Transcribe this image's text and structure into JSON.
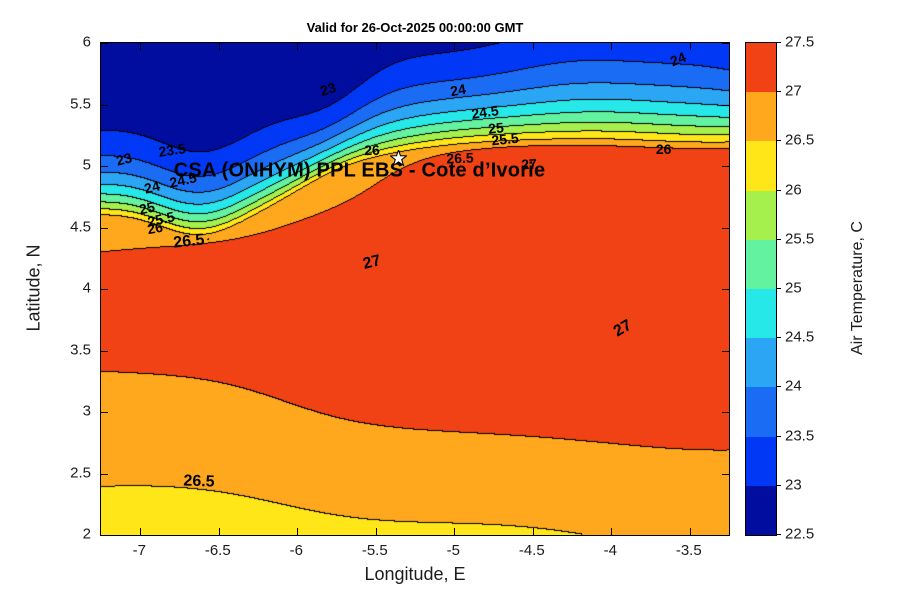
{
  "chart_data": {
    "type": "heatmap",
    "subtype": "filled_contour_map",
    "title": "Valid for 26-Oct-2025 00:00:00 GMT",
    "xlabel": "Longitude, E",
    "ylabel": "Latitude, N",
    "x_range": [
      -7.25,
      -3.25
    ],
    "x_ticks": [
      -7,
      -6.5,
      -6,
      -5.5,
      -5,
      -4.5,
      -4,
      -3.5
    ],
    "y_range": [
      2,
      6
    ],
    "y_ticks": [
      2,
      2.5,
      3,
      3.5,
      4,
      4.5,
      5,
      5.5,
      6
    ],
    "grid": false,
    "value_name": "Air Temperature, C",
    "value_range": [
      22.5,
      27.5
    ],
    "contour_interval": 0.5,
    "contour_levels": [
      23,
      23.5,
      24,
      24.5,
      25,
      25.5,
      26,
      26.5,
      27
    ],
    "contour_labels": [
      {
        "value": "23",
        "lon": -7.1,
        "lat": 5.05,
        "rot": -14
      },
      {
        "value": "23.5",
        "lon": -6.79,
        "lat": 5.12,
        "rot": -8
      },
      {
        "value": "24",
        "lon": -6.92,
        "lat": 4.82,
        "rot": -14
      },
      {
        "value": "24.5",
        "lon": -6.72,
        "lat": 4.88,
        "rot": -12
      },
      {
        "value": "25",
        "lon": -6.95,
        "lat": 4.65,
        "rot": -12
      },
      {
        "value": "25.5",
        "lon": -6.86,
        "lat": 4.56,
        "rot": -12
      },
      {
        "value": "26",
        "lon": -6.9,
        "lat": 4.49,
        "rot": -10
      },
      {
        "value": "26.5",
        "lon": -6.68,
        "lat": 4.37,
        "rot": -6,
        "size": 16
      },
      {
        "value": "23",
        "lon": -5.8,
        "lat": 5.62,
        "rot": -16
      },
      {
        "value": "24",
        "lon": -4.97,
        "lat": 5.61,
        "rot": -10
      },
      {
        "value": "24.5",
        "lon": -4.8,
        "lat": 5.43,
        "rot": -8
      },
      {
        "value": "25",
        "lon": -4.73,
        "lat": 5.3,
        "rot": -6
      },
      {
        "value": "25.5",
        "lon": -4.67,
        "lat": 5.21,
        "rot": -6
      },
      {
        "value": "26",
        "lon": -5.52,
        "lat": 5.12,
        "rot": -2
      },
      {
        "value": "26.5",
        "lon": -4.96,
        "lat": 5.06,
        "rot": -2
      },
      {
        "value": "27",
        "lon": -4.52,
        "lat": 5.01,
        "rot": -4
      },
      {
        "value": "24",
        "lon": -3.57,
        "lat": 5.86,
        "rot": -22
      },
      {
        "value": "26",
        "lon": -3.66,
        "lat": 5.13,
        "rot": 0
      },
      {
        "value": "27",
        "lon": -5.52,
        "lat": 4.2,
        "rot": -14,
        "size": 16
      },
      {
        "value": "27",
        "lon": -3.92,
        "lat": 3.67,
        "rot": -30,
        "size": 16
      },
      {
        "value": "26.5",
        "lon": -6.62,
        "lat": 2.42,
        "rot": 2,
        "size": 16
      }
    ],
    "estimated_grid": {
      "note": "Air temperature (C) read off the filled contours, rows south to north",
      "lon": [
        -7,
        -6.5,
        -6,
        -5.5,
        -5,
        -4.5,
        -4,
        -3.5
      ],
      "lat": [
        2,
        2.5,
        3,
        3.5,
        4,
        4.5,
        5,
        5.5,
        6
      ],
      "temperature_c": [
        [
          26.3,
          26.35,
          26.4,
          26.4,
          26.45,
          26.5,
          26.55,
          26.6
        ],
        [
          26.45,
          26.5,
          26.55,
          26.6,
          26.65,
          26.7,
          26.75,
          26.8
        ],
        [
          26.65,
          26.75,
          26.8,
          26.9,
          26.95,
          27.0,
          27.05,
          27.05
        ],
        [
          26.85,
          26.95,
          27.05,
          27.2,
          27.3,
          27.35,
          27.4,
          27.4
        ],
        [
          26.85,
          27.0,
          27.1,
          27.25,
          27.3,
          27.35,
          27.4,
          27.35
        ],
        [
          26.5,
          26.6,
          26.75,
          26.85,
          26.95,
          27.0,
          27.05,
          27.05
        ],
        [
          23.6,
          24.6,
          25.8,
          26.6,
          26.9,
          27.1,
          26.8,
          27.0
        ],
        [
          22.6,
          22.7,
          22.9,
          23.1,
          23.9,
          24.4,
          25.2,
          24.4
        ],
        [
          22.4,
          22.4,
          22.4,
          22.5,
          22.9,
          23.2,
          23.5,
          23.4
        ]
      ]
    },
    "description": "Filled contour map: cold air (below 23 C, dark blue) north of a sharp front near 5 N, a warm pool above 27 C (orange-red) over the center and east, and a 26-26.5 C (yellow) strip along the southern edge."
  },
  "colorbar": {
    "label": "Air Temperature, C",
    "min": 22.5,
    "max": 27.5,
    "step": 0.5,
    "tick_labels": [
      "22.5",
      "23",
      "23.5",
      "24",
      "24.5",
      "25",
      "25.5",
      "26",
      "26.5",
      "27",
      "27.5"
    ],
    "band_colors_bottom_to_top": [
      "#000d9e",
      "#0038f5",
      "#1a6cf5",
      "#2ba6f5",
      "#27e8e8",
      "#62f2a0",
      "#a6f04e",
      "#ffe619",
      "#ffa81e",
      "#f04214"
    ]
  },
  "annotation": {
    "text": "CSA (ONHYM) PPL EBS  - Cote d’Ivorie",
    "lon": -6.78,
    "lat": 4.95,
    "marker": "white-star",
    "marker_lon": -5.35,
    "marker_lat": 5.05
  }
}
